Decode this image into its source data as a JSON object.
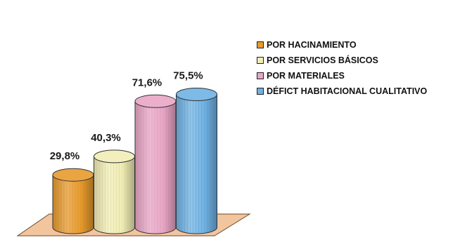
{
  "chart_data": {
    "type": "bar",
    "categories": [
      "POR HACINAMIENTO",
      "POR SERVICIOS BÁSICOS",
      "POR MATERIALES",
      "DÉFICT HABITACIONAL CUALITATIVO"
    ],
    "values": [
      29.8,
      40.3,
      71.6,
      75.5
    ],
    "data_labels": [
      "29,8%",
      "40,3%",
      "71,6%",
      "75,5%"
    ],
    "colors": [
      "#E89A2C",
      "#F1EDB4",
      "#E9A6C6",
      "#6FB2E4"
    ],
    "bar_shape": "cylinder",
    "floor_color": "#F2C59E",
    "legend_position": "right",
    "grid": false,
    "title": "",
    "xlabel": "",
    "ylabel": ""
  }
}
